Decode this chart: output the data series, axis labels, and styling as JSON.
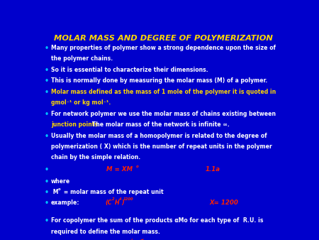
{
  "title": "MOLAR MASS AND DEGREE OF POLYMERIZATION",
  "title_color": "#FFD700",
  "bg_color": "#0000CC",
  "bullet_color": "#00BFFF",
  "text_color": "#FFFFFF",
  "highlight_color": "#FFD700",
  "red_color": "#FF2200",
  "bullet_points_0": "Many properties of polymer show a strong dependence upon the size of",
  "bullet_points_0b": "the polymer chains.",
  "bullet_points_1": "So it is essential to characterize their dimensions.",
  "bullet_points_2": "This is normally done by measuring the molar mass (M) of a polymer.",
  "bullet_points_3a": "Molar mass defined as the mass of 1 mole of the polymer it is quoted in",
  "bullet_points_3b": "gmol⁻¹ or kg mol⁻¹.",
  "bullet_points_4a": "For network polymer we use the molar mass of chains existing between",
  "bullet_points_4b_yellow": "junction points.",
  "bullet_points_4b_white": " The molar mass of the network is infinite ∞.",
  "bullet_points_5a": "Usually the molar mass of a homopolymer is related to the degree of",
  "bullet_points_5b": "polymerization ( X) which is the number of repeat units in the polymer",
  "bullet_points_5c": "chain by the simple relation.",
  "where_text": "where",
  "mo_text": " M",
  "mo_sub": "o",
  "mo_rest": " = molar mass of the repeat unit",
  "example_text": "example:",
  "copolymer_1": "For copolymer the sum of the products αMo for each type of  R.U. is",
  "copolymer_2": "required to define the molar mass."
}
